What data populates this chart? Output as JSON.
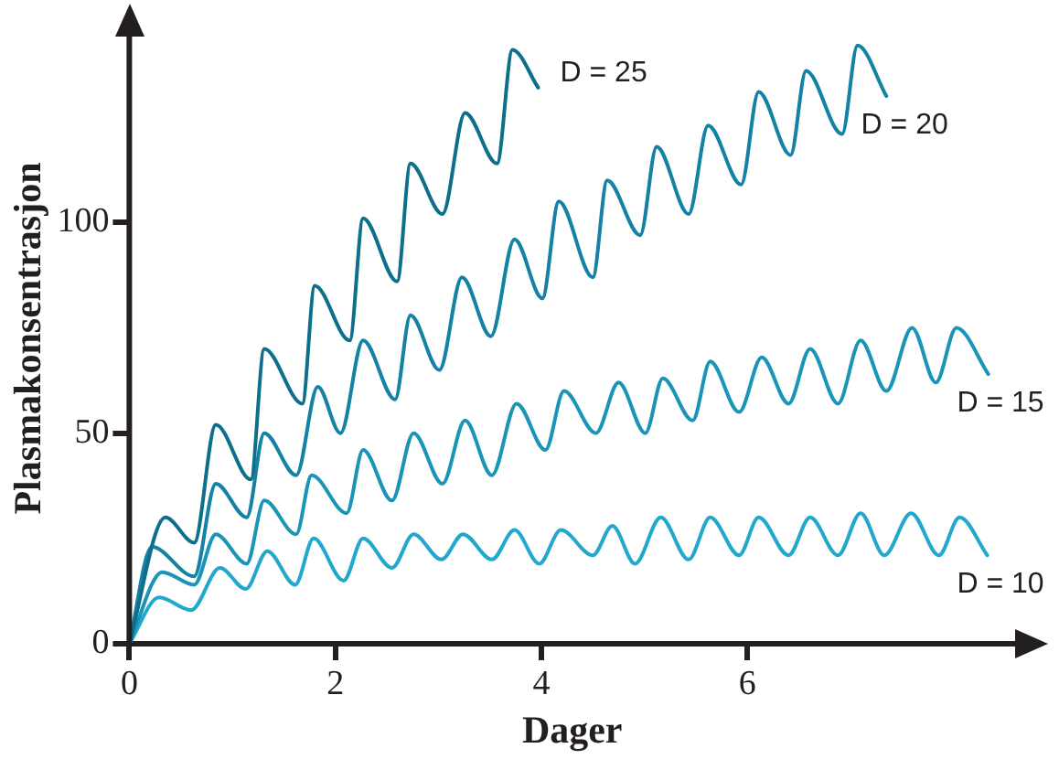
{
  "chart_data": {
    "type": "line",
    "xlabel": "Dager",
    "ylabel": "Plasmakonsentrasjon",
    "xlim": [
      0,
      8.6
    ],
    "xticks": [
      0,
      2,
      4,
      6
    ],
    "ylim": [
      0,
      145
    ],
    "yticks": [
      0,
      50,
      100
    ],
    "grid": false,
    "legend": false,
    "marker": "none",
    "line_style": "solid",
    "series": [
      {
        "name": "D = 25",
        "color": "#0e6f8c",
        "x": [
          0,
          0.35,
          0.63,
          0.84,
          1.18,
          1.31,
          1.68,
          1.8,
          2.14,
          2.27,
          2.6,
          2.73,
          3.04,
          3.26,
          3.57,
          3.72,
          3.97
        ],
        "values": [
          0,
          30,
          24,
          52,
          39,
          70,
          57,
          85,
          72,
          101,
          86,
          114,
          102,
          126,
          114,
          141,
          132
        ]
      },
      {
        "name": "D = 20",
        "color": "#1482a4",
        "x": [
          0,
          0.22,
          0.63,
          0.84,
          1.14,
          1.31,
          1.62,
          1.83,
          2.05,
          2.27,
          2.58,
          2.73,
          3.01,
          3.23,
          3.51,
          3.74,
          4.01,
          4.17,
          4.5,
          4.64,
          4.96,
          5.12,
          5.43,
          5.62,
          5.94,
          6.11,
          6.42,
          6.57,
          6.92,
          7.07,
          7.35
        ],
        "values": [
          0,
          23,
          16,
          38,
          30,
          50,
          40,
          61,
          50,
          72,
          58,
          78,
          65,
          87,
          73,
          96,
          82,
          105,
          87,
          110,
          97,
          118,
          102,
          123,
          109,
          131,
          116,
          136,
          121,
          142,
          130
        ]
      },
      {
        "name": "D = 15",
        "color": "#1a95b8",
        "x": [
          0,
          0.32,
          0.63,
          0.84,
          1.14,
          1.31,
          1.62,
          1.77,
          2.11,
          2.27,
          2.55,
          2.76,
          3.04,
          3.26,
          3.52,
          3.76,
          4.04,
          4.22,
          4.53,
          4.75,
          5.01,
          5.18,
          5.47,
          5.64,
          5.92,
          6.14,
          6.4,
          6.61,
          6.88,
          7.1,
          7.35,
          7.6,
          7.83,
          8.03,
          8.34
        ],
        "values": [
          0,
          17,
          14,
          26,
          19,
          34,
          26,
          40,
          31,
          46,
          34,
          50,
          38,
          53,
          40,
          57,
          46,
          60,
          50,
          62,
          50,
          63,
          53,
          67,
          55,
          68,
          57,
          70,
          57,
          72,
          60,
          75,
          62,
          75,
          64
        ]
      },
      {
        "name": "D = 10",
        "color": "#22a8cc",
        "x": [
          0,
          0.29,
          0.6,
          0.88,
          1.13,
          1.34,
          1.61,
          1.79,
          2.08,
          2.27,
          2.55,
          2.76,
          3.03,
          3.24,
          3.52,
          3.74,
          3.98,
          4.19,
          4.5,
          4.69,
          4.91,
          5.16,
          5.43,
          5.64,
          5.92,
          6.11,
          6.4,
          6.61,
          6.88,
          7.1,
          7.33,
          7.59,
          7.86,
          8.06,
          8.33
        ],
        "values": [
          0,
          11,
          8,
          18,
          13,
          22,
          14,
          25,
          15,
          25,
          18,
          26,
          20,
          26,
          20,
          27,
          19,
          27,
          21,
          28,
          19,
          30,
          20,
          30,
          21,
          30,
          21,
          30,
          21,
          31,
          21,
          31,
          21,
          30,
          21
        ]
      }
    ]
  }
}
